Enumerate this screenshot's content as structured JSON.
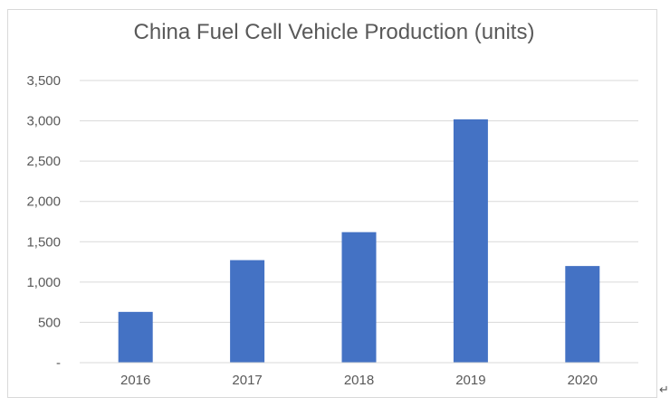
{
  "chart_data": {
    "type": "bar",
    "title": "China Fuel Cell Vehicle Production (units)",
    "categories": [
      "2016",
      "2017",
      "2018",
      "2019",
      "2020"
    ],
    "values": [
      630,
      1272,
      1619,
      3018,
      1199
    ],
    "ylim": [
      0,
      3500
    ],
    "yticks": [
      0,
      500,
      1000,
      1500,
      2000,
      2500,
      3000,
      3500
    ],
    "ytick_labels": [
      "-",
      "500",
      "1,000",
      "1,500",
      "2,000",
      "2,500",
      "3,000",
      "3,500"
    ],
    "grid": true,
    "legend": "none",
    "bar_color": "#4472c4",
    "grid_color": "#d9d9d9",
    "label_color": "#595959"
  },
  "return_mark": "↵"
}
